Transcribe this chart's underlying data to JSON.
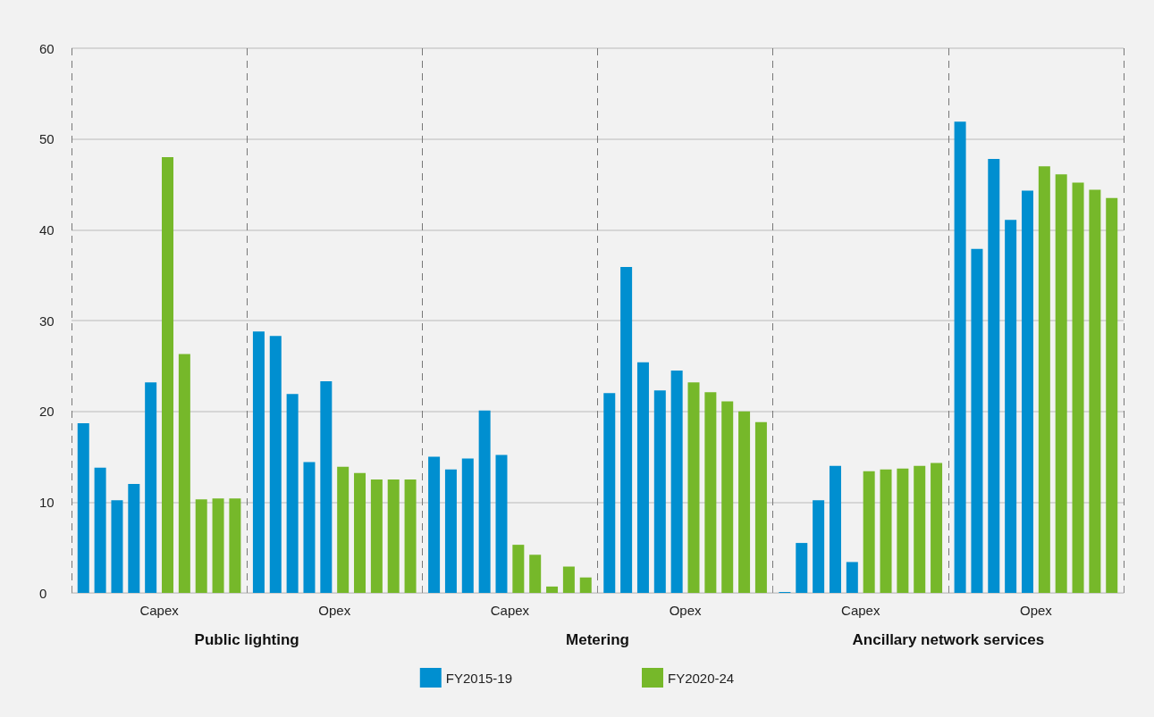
{
  "chart_data": {
    "type": "bar",
    "categories": [
      "Capex",
      "Opex",
      "Capex",
      "Opex",
      "Capex",
      "Opex"
    ],
    "series": [
      {
        "name": "FY2015-19",
        "color": "#008fd0",
        "values": [
          18.7,
          28.8,
          15.0,
          22.0,
          0.1,
          51.9
        ]
      },
      {
        "color": "#008fd0",
        "values": [
          13.8,
          28.3,
          13.6,
          35.9,
          5.5,
          37.9
        ]
      },
      {
        "color": "#008fd0",
        "values": [
          10.2,
          21.9,
          14.8,
          25.4,
          10.2,
          47.8
        ]
      },
      {
        "color": "#008fd0",
        "values": [
          12.0,
          14.4,
          20.1,
          22.3,
          14.0,
          41.1
        ]
      },
      {
        "color": "#008fd0",
        "values": [
          23.2,
          23.3,
          15.2,
          24.5,
          3.4,
          44.3
        ]
      },
      {
        "name": "FY2020-24",
        "color": "#76b82a",
        "values": [
          48.0,
          13.9,
          5.3,
          23.2,
          13.4,
          47.0
        ]
      },
      {
        "color": "#76b82a",
        "values": [
          26.3,
          13.2,
          4.2,
          22.1,
          13.6,
          46.1
        ]
      },
      {
        "color": "#76b82a",
        "values": [
          10.3,
          12.5,
          0.7,
          21.1,
          13.7,
          45.2
        ]
      },
      {
        "color": "#76b82a",
        "values": [
          10.4,
          12.5,
          2.9,
          20.0,
          14.0,
          44.4
        ]
      },
      {
        "color": "#76b82a",
        "values": [
          10.4,
          12.5,
          1.7,
          18.8,
          14.3,
          43.5
        ]
      }
    ],
    "annotations": [
      "Public lighting",
      "Metering",
      "Ancillary network services"
    ],
    "ylim": [
      0,
      60
    ],
    "yticks": [
      0,
      10,
      20,
      30,
      40,
      50,
      60
    ],
    "grid": true,
    "legend": "bottom"
  }
}
